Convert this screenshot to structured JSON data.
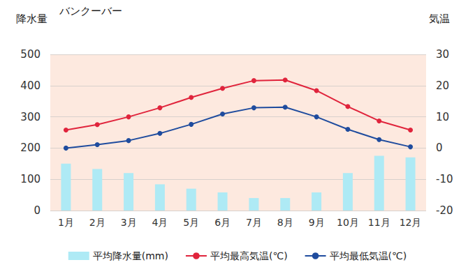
{
  "chart_data": {
    "type": "bar",
    "title": "バンクーバー",
    "y_label": "降水量",
    "y2_label": "気温",
    "categories": [
      "1月",
      "2月",
      "3月",
      "4月",
      "5月",
      "6月",
      "7月",
      "8月",
      "9月",
      "10月",
      "11月",
      "12月"
    ],
    "series": [
      {
        "name": "平均降水量(mm)",
        "type": "bar",
        "color": "#aeeaf5",
        "values": [
          150,
          133,
          120,
          84,
          70,
          58,
          40,
          40,
          58,
          120,
          175,
          170
        ]
      },
      {
        "name": "平均最高気温(℃)",
        "type": "line",
        "axis": "y2",
        "color": "#e0243c",
        "marker": "circle",
        "values": [
          5.8,
          7.5,
          10,
          12.9,
          16.2,
          19.1,
          21.6,
          21.8,
          18.4,
          13.3,
          8.7,
          5.8
        ]
      },
      {
        "name": "平均最低気温(℃)",
        "type": "line",
        "axis": "y2",
        "color": "#1f4c9e",
        "marker": "circle",
        "values": [
          0,
          1.1,
          2.4,
          4.7,
          7.6,
          10.9,
          12.9,
          13.1,
          10,
          6,
          2.7,
          0.4
        ]
      }
    ],
    "ylim": [
      0,
      500
    ],
    "yticks": [
      0,
      100,
      200,
      300,
      400,
      500
    ],
    "y2lim": [
      -20,
      30
    ],
    "y2ticks": [
      -20,
      -10,
      0,
      10,
      20,
      30
    ],
    "grid": true,
    "legend": "bottom"
  }
}
